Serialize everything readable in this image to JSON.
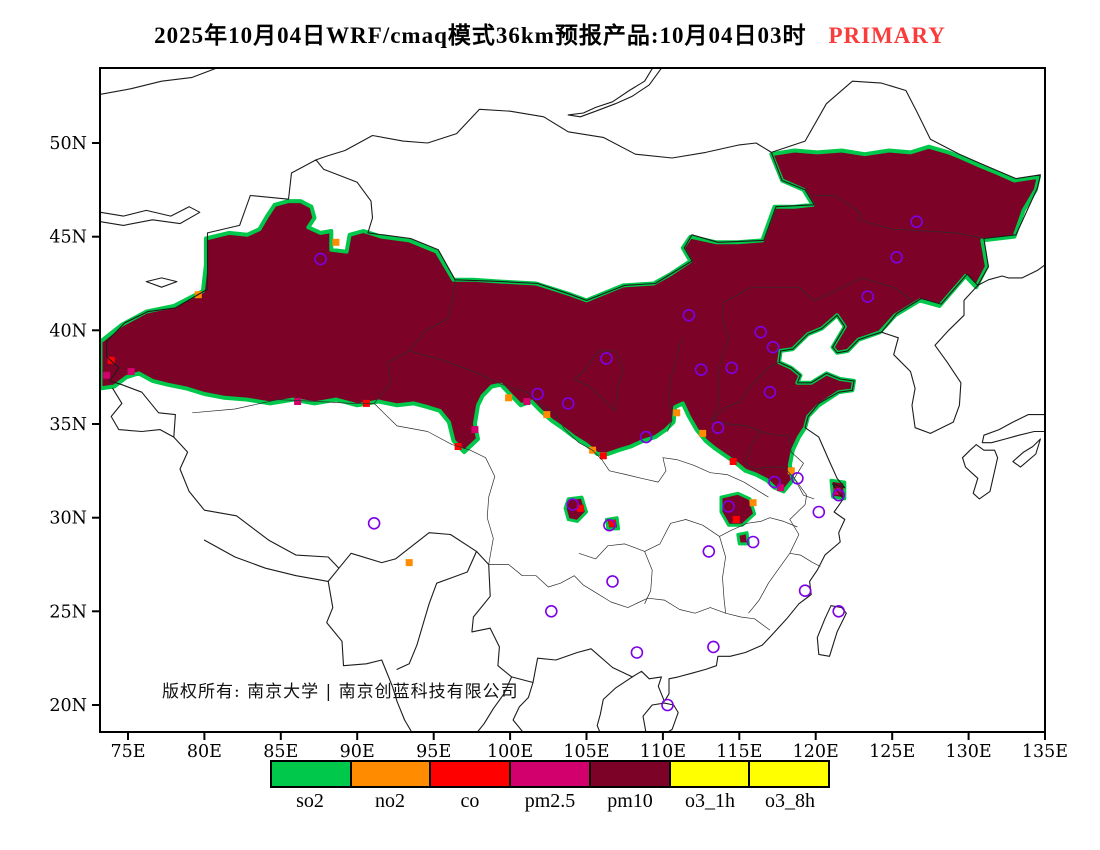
{
  "title": {
    "main": "2025年10月04日WRF/cmaq模式36km预报产品:10月04日03时",
    "highlight": "PRIMARY",
    "highlight_color": "#fa3c3c"
  },
  "copyright": "版权所有: 南京大学 | 南京创蓝科技有限公司",
  "axes": {
    "lon_ticks": [
      {
        "v": 75,
        "label": "75E"
      },
      {
        "v": 80,
        "label": "80E"
      },
      {
        "v": 85,
        "label": "85E"
      },
      {
        "v": 90,
        "label": "90E"
      },
      {
        "v": 95,
        "label": "95E"
      },
      {
        "v": 100,
        "label": "100E"
      },
      {
        "v": 105,
        "label": "105E"
      },
      {
        "v": 110,
        "label": "110E"
      },
      {
        "v": 115,
        "label": "115E"
      },
      {
        "v": 120,
        "label": "120E"
      },
      {
        "v": 125,
        "label": "125E"
      },
      {
        "v": 130,
        "label": "130E"
      },
      {
        "v": 135,
        "label": "135E"
      }
    ],
    "lat_ticks": [
      {
        "v": 20,
        "label": "20N"
      },
      {
        "v": 25,
        "label": "25N"
      },
      {
        "v": 30,
        "label": "30N"
      },
      {
        "v": 35,
        "label": "35N"
      },
      {
        "v": 40,
        "label": "40N"
      },
      {
        "v": 45,
        "label": "45N"
      },
      {
        "v": 50,
        "label": "50N"
      }
    ]
  },
  "legend": {
    "items": [
      {
        "label": "so2",
        "color": "#00c84b"
      },
      {
        "label": "no2",
        "color": "#ff8c00"
      },
      {
        "label": "co",
        "color": "#ff0000"
      },
      {
        "label": "pm2.5",
        "color": "#d1006c"
      },
      {
        "label": "pm10",
        "color": "#7d0228"
      },
      {
        "label": "o3_1h",
        "color": "#ffff00"
      },
      {
        "label": "o3_8h",
        "color": "#ffff00"
      }
    ]
  },
  "map_data": {
    "region_color": "#7d0228",
    "fringe_color": "#00c84b",
    "station_color": "#7d00e6",
    "main_region": [
      [
        73.2,
        39.4
      ],
      [
        74.6,
        40.3
      ],
      [
        76.2,
        41.0
      ],
      [
        78.0,
        41.3
      ],
      [
        79.9,
        42.1
      ],
      [
        80.1,
        43.5
      ],
      [
        80.1,
        44.9
      ],
      [
        81.6,
        45.2
      ],
      [
        82.8,
        45.1
      ],
      [
        83.6,
        45.4
      ],
      [
        84.1,
        46.1
      ],
      [
        84.6,
        46.7
      ],
      [
        85.5,
        46.9
      ],
      [
        86.3,
        46.9
      ],
      [
        87.0,
        46.6
      ],
      [
        87.2,
        46.0
      ],
      [
        86.8,
        45.5
      ],
      [
        87.6,
        45.2
      ],
      [
        88.3,
        45.3
      ],
      [
        88.3,
        44.3
      ],
      [
        89.3,
        44.2
      ],
      [
        89.5,
        45.1
      ],
      [
        90.4,
        45.3
      ],
      [
        91.6,
        45.0
      ],
      [
        93.4,
        44.8
      ],
      [
        95.2,
        44.2
      ],
      [
        96.3,
        42.7
      ],
      [
        97.6,
        42.7
      ],
      [
        99.4,
        42.6
      ],
      [
        101.7,
        42.5
      ],
      [
        104.0,
        41.9
      ],
      [
        105.0,
        41.6
      ],
      [
        106.2,
        42.0
      ],
      [
        107.4,
        42.4
      ],
      [
        109.4,
        42.5
      ],
      [
        110.5,
        43.0
      ],
      [
        111.8,
        43.7
      ],
      [
        111.3,
        44.4
      ],
      [
        111.8,
        45.0
      ],
      [
        113.5,
        44.7
      ],
      [
        114.9,
        44.7
      ],
      [
        116.5,
        44.8
      ],
      [
        117.3,
        46.6
      ],
      [
        118.6,
        46.6
      ],
      [
        119.8,
        46.7
      ],
      [
        119.2,
        47.5
      ],
      [
        117.8,
        48.0
      ],
      [
        117.1,
        49.4
      ],
      [
        118.6,
        49.6
      ],
      [
        120.1,
        49.5
      ],
      [
        121.7,
        49.6
      ],
      [
        123.2,
        49.4
      ],
      [
        124.8,
        49.6
      ],
      [
        126.2,
        49.5
      ],
      [
        127.4,
        49.8
      ],
      [
        128.7,
        49.5
      ],
      [
        129.3,
        49.3
      ],
      [
        130.7,
        48.8
      ],
      [
        131.9,
        48.4
      ],
      [
        133.0,
        48.0
      ],
      [
        134.6,
        48.2
      ],
      [
        134.4,
        47.5
      ],
      [
        133.6,
        46.4
      ],
      [
        133.0,
        45.0
      ],
      [
        130.9,
        44.8
      ],
      [
        131.2,
        43.4
      ],
      [
        130.5,
        42.3
      ],
      [
        129.8,
        42.9
      ],
      [
        128.1,
        41.3
      ],
      [
        126.8,
        41.6
      ],
      [
        125.2,
        40.8
      ],
      [
        124.2,
        39.9
      ],
      [
        123.5,
        39.7
      ],
      [
        122.8,
        39.5
      ],
      [
        122.1,
        38.9
      ],
      [
        121.4,
        38.8
      ],
      [
        121.1,
        39.1
      ],
      [
        121.9,
        40.2
      ],
      [
        121.4,
        40.8
      ],
      [
        120.4,
        40.1
      ],
      [
        119.5,
        39.8
      ],
      [
        118.5,
        39.0
      ],
      [
        117.7,
        38.9
      ],
      [
        117.6,
        38.3
      ],
      [
        118.4,
        38.0
      ],
      [
        119.0,
        37.6
      ],
      [
        118.8,
        37.2
      ],
      [
        119.7,
        37.2
      ],
      [
        120.7,
        37.7
      ],
      [
        121.6,
        37.4
      ],
      [
        122.5,
        37.3
      ],
      [
        122.4,
        36.8
      ],
      [
        121.5,
        36.7
      ],
      [
        120.2,
        36.0
      ],
      [
        119.5,
        35.4
      ],
      [
        119.3,
        34.8
      ],
      [
        118.9,
        34.3
      ],
      [
        118.5,
        33.6
      ],
      [
        118.3,
        32.8
      ],
      [
        118.5,
        32.0
      ],
      [
        117.9,
        31.4
      ],
      [
        117.3,
        31.6
      ],
      [
        116.8,
        32.0
      ],
      [
        116.1,
        32.3
      ],
      [
        115.4,
        32.5
      ],
      [
        114.8,
        32.9
      ],
      [
        114.1,
        33.3
      ],
      [
        113.4,
        33.7
      ],
      [
        112.8,
        34.1
      ],
      [
        112.2,
        34.7
      ],
      [
        111.7,
        35.4
      ],
      [
        111.3,
        36.1
      ],
      [
        110.8,
        35.9
      ],
      [
        110.7,
        35.1
      ],
      [
        110.2,
        34.7
      ],
      [
        109.5,
        34.3
      ],
      [
        108.7,
        34.1
      ],
      [
        107.9,
        33.8
      ],
      [
        107.1,
        33.6
      ],
      [
        106.4,
        33.4
      ],
      [
        105.7,
        33.4
      ],
      [
        105.0,
        33.9
      ],
      [
        104.2,
        34.3
      ],
      [
        103.4,
        34.8
      ],
      [
        102.7,
        35.2
      ],
      [
        102.0,
        35.7
      ],
      [
        101.4,
        36.2
      ],
      [
        100.7,
        36.0
      ],
      [
        100.1,
        36.5
      ],
      [
        99.4,
        37.1
      ],
      [
        98.8,
        37.0
      ],
      [
        98.2,
        36.5
      ],
      [
        97.9,
        36.0
      ],
      [
        97.7,
        35.0
      ],
      [
        97.9,
        34.2
      ],
      [
        97.0,
        33.5
      ],
      [
        96.3,
        34.1
      ],
      [
        96.0,
        35.1
      ],
      [
        95.4,
        35.7
      ],
      [
        94.6,
        35.9
      ],
      [
        93.7,
        36.1
      ],
      [
        92.6,
        36.0
      ],
      [
        91.4,
        36.2
      ],
      [
        90.0,
        36.0
      ],
      [
        88.6,
        36.3
      ],
      [
        87.2,
        36.1
      ],
      [
        85.8,
        36.3
      ],
      [
        84.3,
        36.1
      ],
      [
        82.8,
        36.3
      ],
      [
        81.3,
        36.4
      ],
      [
        80.0,
        36.6
      ],
      [
        78.8,
        36.9
      ],
      [
        77.6,
        37.1
      ],
      [
        76.6,
        37.3
      ],
      [
        75.7,
        37.7
      ],
      [
        74.9,
        37.5
      ],
      [
        74.1,
        37.0
      ],
      [
        73.2,
        36.9
      ]
    ],
    "patches": [
      {
        "name": "hubei-patch",
        "pts": [
          [
            113.8,
            31.1
          ],
          [
            114.9,
            31.3
          ],
          [
            115.7,
            31.0
          ],
          [
            116.0,
            30.2
          ],
          [
            115.2,
            29.6
          ],
          [
            114.3,
            29.6
          ],
          [
            113.8,
            30.3
          ]
        ]
      },
      {
        "name": "jiangxi-patch",
        "pts": [
          [
            114.9,
            29.1
          ],
          [
            115.5,
            29.2
          ],
          [
            115.6,
            28.6
          ],
          [
            115.0,
            28.6
          ]
        ]
      },
      {
        "name": "chengdu-patch",
        "pts": [
          [
            103.8,
            31.0
          ],
          [
            104.7,
            31.1
          ],
          [
            105.0,
            30.3
          ],
          [
            104.4,
            29.8
          ],
          [
            103.8,
            29.9
          ],
          [
            103.6,
            30.5
          ]
        ]
      },
      {
        "name": "chongqing-patch",
        "pts": [
          [
            106.3,
            29.9
          ],
          [
            107.0,
            30.0
          ],
          [
            107.1,
            29.4
          ],
          [
            106.4,
            29.4
          ]
        ]
      },
      {
        "name": "shanghai-patch",
        "pts": [
          [
            121.0,
            32.0
          ],
          [
            121.9,
            31.9
          ],
          [
            121.9,
            31.0
          ],
          [
            121.1,
            31.1
          ]
        ]
      }
    ],
    "fringe_marks": [
      {
        "lon": 73.6,
        "lat": 37.6,
        "c": "#d1006c"
      },
      {
        "lon": 73.9,
        "lat": 38.4,
        "c": "#ff0000"
      },
      {
        "lon": 75.2,
        "lat": 37.8,
        "c": "#d1006c"
      },
      {
        "lon": 79.6,
        "lat": 41.9,
        "c": "#ff8c00"
      },
      {
        "lon": 88.6,
        "lat": 44.7,
        "c": "#ff8c00"
      },
      {
        "lon": 90.6,
        "lat": 36.1,
        "c": "#ff0000"
      },
      {
        "lon": 86.1,
        "lat": 36.2,
        "c": "#d1006c"
      },
      {
        "lon": 97.7,
        "lat": 34.7,
        "c": "#d1006c"
      },
      {
        "lon": 96.6,
        "lat": 33.8,
        "c": "#ff0000"
      },
      {
        "lon": 99.9,
        "lat": 36.4,
        "c": "#ff8c00"
      },
      {
        "lon": 101.1,
        "lat": 36.2,
        "c": "#d1006c"
      },
      {
        "lon": 102.4,
        "lat": 35.5,
        "c": "#ff8c00"
      },
      {
        "lon": 105.4,
        "lat": 33.6,
        "c": "#ff8c00"
      },
      {
        "lon": 106.1,
        "lat": 33.3,
        "c": "#ff0000"
      },
      {
        "lon": 110.9,
        "lat": 35.6,
        "c": "#ff8c00"
      },
      {
        "lon": 112.6,
        "lat": 34.5,
        "c": "#ff8c00"
      },
      {
        "lon": 114.6,
        "lat": 33.0,
        "c": "#ff0000"
      },
      {
        "lon": 117.7,
        "lat": 31.6,
        "c": "#d1006c"
      },
      {
        "lon": 118.4,
        "lat": 32.5,
        "c": "#ff8c00"
      },
      {
        "lon": 121.4,
        "lat": 31.4,
        "c": "#d1006c"
      },
      {
        "lon": 104.6,
        "lat": 30.5,
        "c": "#ff0000"
      },
      {
        "lon": 114.8,
        "lat": 29.9,
        "c": "#ff0000"
      },
      {
        "lon": 115.9,
        "lat": 30.8,
        "c": "#ff8c00"
      },
      {
        "lon": 93.4,
        "lat": 27.6,
        "c": "#ff8c00"
      },
      {
        "lon": 106.7,
        "lat": 29.7,
        "c": "#ff0000"
      }
    ],
    "stations": [
      [
        87.6,
        43.8
      ],
      [
        91.1,
        29.7
      ],
      [
        101.8,
        36.6
      ],
      [
        103.8,
        36.1
      ],
      [
        106.3,
        38.5
      ],
      [
        111.7,
        40.8
      ],
      [
        116.4,
        39.9
      ],
      [
        117.2,
        39.1
      ],
      [
        114.5,
        38.0
      ],
      [
        112.5,
        37.9
      ],
      [
        117.0,
        36.7
      ],
      [
        113.6,
        34.8
      ],
      [
        108.9,
        34.3
      ],
      [
        104.1,
        30.7
      ],
      [
        106.5,
        29.6
      ],
      [
        114.3,
        30.6
      ],
      [
        117.3,
        31.9
      ],
      [
        118.8,
        32.1
      ],
      [
        121.5,
        31.2
      ],
      [
        120.2,
        30.3
      ],
      [
        113.0,
        28.2
      ],
      [
        115.9,
        28.7
      ],
      [
        106.7,
        26.6
      ],
      [
        102.7,
        25.0
      ],
      [
        119.3,
        26.1
      ],
      [
        113.3,
        23.1
      ],
      [
        108.3,
        22.8
      ],
      [
        110.3,
        20.0
      ],
      [
        126.6,
        45.8
      ],
      [
        125.3,
        43.9
      ],
      [
        123.4,
        41.8
      ],
      [
        121.5,
        25.0
      ]
    ]
  }
}
